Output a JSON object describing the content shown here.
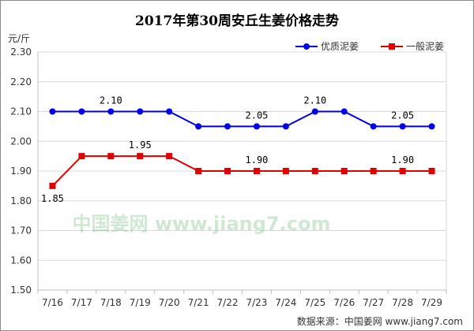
{
  "chart_data": {
    "type": "line",
    "title": "2017年第30周安丘生姜价格走势",
    "unit": "元/斤",
    "source": "数据来源：中国姜网 www.jiang7.com",
    "watermark": "中国姜网 www.jiang7.com",
    "categories": [
      "7/16",
      "7/17",
      "7/18",
      "7/19",
      "7/20",
      "7/21",
      "7/22",
      "7/23",
      "7/24",
      "7/25",
      "7/26",
      "7/27",
      "7/28",
      "7/29"
    ],
    "ylim": [
      1.5,
      2.3
    ],
    "yticks": [
      "1.50",
      "1.60",
      "1.70",
      "1.80",
      "1.90",
      "2.00",
      "2.10",
      "2.20",
      "2.30"
    ],
    "grid": true,
    "legend_position": "top-right",
    "series": [
      {
        "name": "优质泥姜",
        "color": "#0000ee",
        "marker": "circle",
        "values": [
          2.1,
          2.1,
          2.1,
          2.1,
          2.1,
          2.05,
          2.05,
          2.05,
          2.05,
          2.1,
          2.1,
          2.05,
          2.05,
          2.05
        ],
        "labels": [
          {
            "index": 2,
            "text": "2.10",
            "position": "above"
          },
          {
            "index": 7,
            "text": "2.05",
            "position": "above"
          },
          {
            "index": 9,
            "text": "2.10",
            "position": "above"
          },
          {
            "index": 12,
            "text": "2.05",
            "position": "above"
          }
        ]
      },
      {
        "name": "一般泥姜",
        "color": "#e00000",
        "marker": "square",
        "values": [
          1.85,
          1.95,
          1.95,
          1.95,
          1.95,
          1.9,
          1.9,
          1.9,
          1.9,
          1.9,
          1.9,
          1.9,
          1.9,
          1.9
        ],
        "labels": [
          {
            "index": 0,
            "text": "1.85",
            "position": "below"
          },
          {
            "index": 3,
            "text": "1.95",
            "position": "above"
          },
          {
            "index": 7,
            "text": "1.90",
            "position": "above"
          },
          {
            "index": 12,
            "text": "1.90",
            "position": "above"
          }
        ]
      }
    ]
  }
}
